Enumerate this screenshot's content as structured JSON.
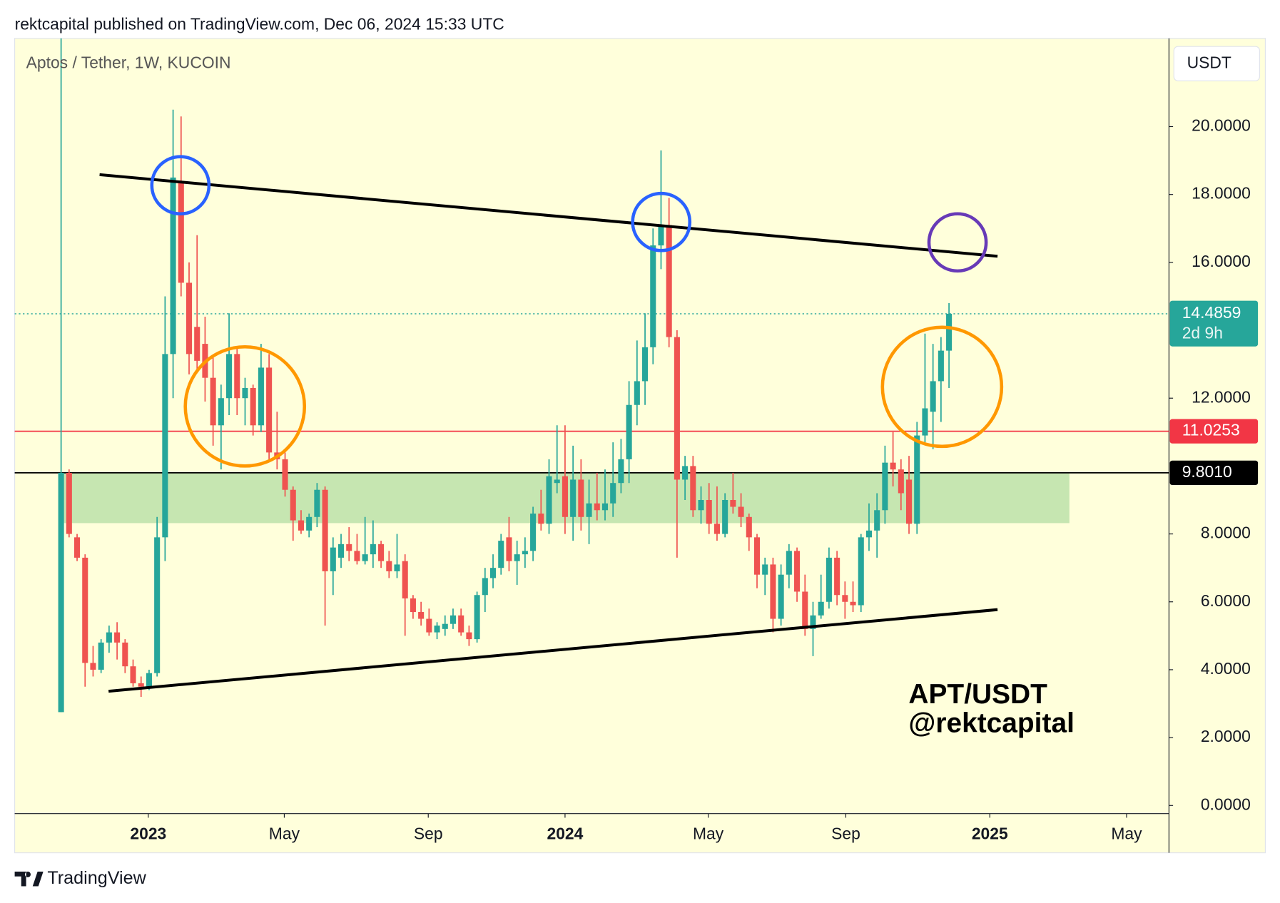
{
  "header": "rektcapital published on TradingView.com, Dec 06, 2024 15:33 UTC",
  "footer": "TradingView",
  "chart_data": {
    "type": "candlestick",
    "title": "Aptos / Tether, 1W, KUCOIN",
    "currency": "USDT",
    "annotations": [
      "APT/USDT",
      "@rektcapital"
    ],
    "up_color": "#26a69a",
    "down_color": "#ef5350",
    "candles": {
      "open": [
        2.75,
        9.8,
        7.9,
        7.3,
        4.2,
        4.0,
        4.8,
        5.1,
        4.8,
        4.1,
        3.6,
        3.5,
        3.9,
        7.9,
        13.3,
        18.4,
        15.4,
        14.1,
        13.6,
        12.6,
        11.2,
        12.0,
        13.3,
        12.0,
        12.3,
        11.2,
        12.9,
        10.4,
        10.2,
        9.3,
        8.4,
        8.1,
        8.5,
        9.3,
        6.9,
        7.3,
        7.7,
        7.5,
        7.2,
        7.4,
        7.7,
        7.2,
        6.9,
        7.2,
        6.1,
        5.7,
        5.5,
        5.1,
        5.2,
        5.35,
        5.6,
        5.1,
        4.9,
        6.2,
        6.7,
        7.0,
        7.9,
        7.2,
        7.4,
        7.5,
        8.6,
        8.3,
        9.5,
        9.7,
        8.5,
        9.6,
        8.5,
        8.9,
        8.7,
        8.9,
        9.5,
        10.2,
        11.8,
        12.5,
        13.5,
        16.5,
        17.1,
        13.8,
        9.6,
        10.0,
        8.7,
        9.0,
        8.3,
        8.0,
        9.0,
        8.8,
        8.5,
        7.9,
        6.8,
        7.1,
        5.5,
        6.8,
        7.5,
        6.3,
        5.2,
        5.6,
        6.0,
        7.3,
        6.2,
        6.0,
        5.9,
        7.9,
        8.1,
        8.7,
        10.1,
        9.9,
        9.6,
        8.3,
        10.9,
        11.6,
        12.5,
        13.4
      ],
      "high": [
        25,
        9.9,
        8.0,
        7.4,
        4.7,
        4.9,
        5.3,
        5.4,
        4.9,
        4.3,
        3.8,
        4.0,
        8.5,
        15.0,
        20.5,
        20.3,
        16.0,
        16.8,
        14.4,
        13.2,
        12.4,
        14.5,
        13.5,
        12.6,
        12.4,
        13.6,
        13.3,
        11.6,
        10.4,
        9.4,
        8.7,
        8.6,
        9.5,
        9.4,
        7.9,
        8.0,
        8.2,
        8.0,
        8.5,
        8.4,
        7.8,
        7.5,
        8.0,
        7.4,
        6.2,
        6.0,
        5.8,
        5.4,
        5.6,
        5.8,
        5.8,
        5.3,
        6.3,
        7.0,
        7.4,
        8.0,
        8.5,
        7.8,
        7.9,
        8.8,
        9.3,
        10.2,
        11.2,
        11.2,
        10.6,
        10.2,
        9.6,
        9.8,
        9.9,
        10.7,
        10.8,
        12.5,
        13.7,
        14.5,
        17.0,
        19.3,
        17.9,
        14.0,
        10.3,
        10.3,
        9.4,
        9.5,
        9.4,
        9.2,
        9.8,
        9.2,
        8.6,
        8.0,
        7.3,
        7.3,
        7.1,
        7.7,
        7.6,
        6.8,
        6.0,
        6.8,
        7.6,
        7.5,
        6.6,
        6.6,
        8.0,
        8.9,
        9.2,
        10.6,
        11.0,
        10.2,
        10.3,
        11.3,
        13.9,
        13.6,
        13.8,
        14.8
      ],
      "low": [
        2.75,
        7.9,
        7.2,
        3.5,
        3.8,
        3.9,
        4.5,
        4.3,
        3.9,
        3.5,
        3.2,
        3.4,
        3.8,
        7.2,
        12.0,
        15.0,
        12.7,
        12.8,
        11.9,
        10.6,
        9.9,
        11.5,
        11.5,
        11.2,
        10.9,
        11.0,
        10.2,
        9.9,
        9.1,
        7.8,
        8.0,
        7.9,
        8.2,
        5.3,
        6.2,
        7.0,
        7.2,
        7.1,
        7.1,
        7.0,
        7.0,
        6.7,
        6.7,
        5.0,
        5.5,
        5.3,
        5.0,
        4.9,
        5.0,
        5.2,
        5.0,
        4.7,
        4.8,
        5.7,
        6.4,
        6.8,
        6.9,
        6.5,
        7.0,
        7.2,
        8.1,
        8.0,
        9.2,
        8.0,
        7.8,
        8.1,
        7.7,
        8.4,
        8.4,
        8.5,
        9.2,
        9.5,
        11.2,
        11.8,
        13.0,
        15.8,
        13.5,
        7.3,
        9.0,
        8.5,
        8.3,
        8.0,
        7.8,
        7.9,
        8.6,
        8.2,
        7.5,
        6.4,
        6.2,
        5.1,
        5.3,
        6.4,
        6.0,
        5.0,
        4.4,
        5.5,
        5.8,
        5.9,
        5.5,
        5.7,
        5.7,
        7.5,
        7.3,
        8.3,
        9.4,
        8.7,
        8.0,
        8.0,
        10.7,
        10.5,
        11.3,
        12.3
      ],
      "close": [
        9.8,
        8.0,
        7.3,
        4.2,
        4.0,
        4.8,
        5.1,
        4.8,
        4.1,
        3.6,
        3.5,
        3.9,
        7.9,
        13.3,
        18.5,
        15.4,
        13.3,
        13.1,
        12.6,
        11.2,
        12.0,
        13.3,
        12.0,
        12.3,
        11.2,
        12.9,
        10.4,
        10.2,
        9.3,
        8.4,
        8.1,
        8.5,
        9.3,
        6.9,
        7.6,
        7.7,
        7.5,
        7.2,
        7.4,
        7.7,
        7.2,
        6.9,
        7.1,
        6.1,
        5.7,
        5.5,
        5.1,
        5.3,
        5.35,
        5.6,
        5.1,
        4.9,
        6.2,
        6.7,
        7.0,
        7.8,
        7.2,
        7.4,
        7.5,
        8.6,
        8.3,
        9.7,
        9.6,
        8.5,
        9.6,
        8.5,
        8.9,
        8.7,
        8.9,
        9.5,
        10.2,
        11.8,
        12.5,
        13.5,
        16.5,
        17.1,
        13.8,
        9.6,
        10.0,
        8.7,
        9.0,
        8.3,
        8.0,
        9.0,
        8.8,
        8.5,
        7.9,
        6.8,
        7.1,
        5.5,
        6.8,
        7.5,
        6.3,
        5.2,
        5.6,
        6.0,
        7.3,
        6.2,
        6.0,
        5.9,
        7.9,
        8.1,
        8.7,
        10.1,
        9.9,
        9.2,
        8.3,
        10.9,
        11.7,
        12.5,
        13.4,
        14.4859
      ]
    },
    "xlim": [
      -5.8,
      138.5
    ],
    "xticks": [
      {
        "value": 10.9,
        "label": "2023"
      },
      {
        "value": 27.9,
        "label": "May"
      },
      {
        "value": 45.9,
        "label": "Sep"
      },
      {
        "value": 63.0,
        "label": "2024"
      },
      {
        "value": 80.9,
        "label": "May"
      },
      {
        "value": 98.1,
        "label": "Sep"
      },
      {
        "value": 116.1,
        "label": "2025"
      },
      {
        "value": 133.2,
        "label": "May"
      }
    ],
    "ylim": [
      -0.24,
      22.6
    ],
    "yticks": [
      {
        "value": 0,
        "label": "0.0000"
      },
      {
        "value": 2,
        "label": "2.0000"
      },
      {
        "value": 4,
        "label": "4.0000"
      },
      {
        "value": 6,
        "label": "6.0000"
      },
      {
        "value": 8,
        "label": "8.0000"
      },
      {
        "value": 12,
        "label": "12.0000"
      },
      {
        "value": 16,
        "label": "16.0000"
      },
      {
        "value": 18,
        "label": "18.0000"
      },
      {
        "value": 20,
        "label": "20.0000"
      }
    ],
    "price_lines": [
      {
        "value": 14.4859,
        "color": "#26a69a",
        "countdown": "2d 9h",
        "dotted": true
      },
      {
        "value": 11.0253,
        "color": "#f23645"
      },
      {
        "value": 9.801,
        "label": "9.8010",
        "color": "#000000"
      }
    ]
  }
}
